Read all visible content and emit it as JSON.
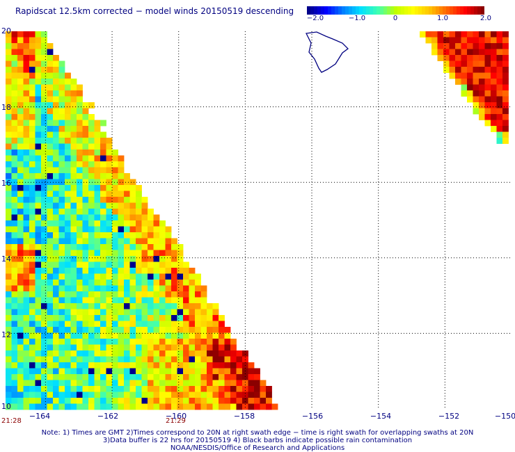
{
  "title": "Rapidscat 12.5km corrected − model winds 20150519 descending",
  "colorbar": {
    "labels": [
      {
        "text": "−2.0",
        "value": -2.0
      },
      {
        "text": "−1.0",
        "value": -1.0
      },
      {
        "text": "0",
        "value": 0
      },
      {
        "text": "1.0",
        "value": 1.0
      },
      {
        "text": "2.0",
        "value": 2.0
      }
    ],
    "range": [
      -2.0,
      2.0
    ],
    "colors": [
      "#00008b",
      "#0000ff",
      "#0080ff",
      "#00e0ff",
      "#40ffb0",
      "#c0ff00",
      "#ffff00",
      "#ffc000",
      "#ff6000",
      "#ff0000",
      "#8b0000"
    ]
  },
  "axes": {
    "lat_labels": [
      "20",
      "18",
      "16",
      "14",
      "12",
      "10"
    ],
    "lon_labels": [
      "−164",
      "−162",
      "−160",
      "−158",
      "−156",
      "−154",
      "−152",
      "−150"
    ]
  },
  "time_labels": [
    "21:28",
    "21:29"
  ],
  "notes": [
    "Note: 1) Times are GMT 2)Times correspond to 20N at right swath edge − time is right swath for overlapping swaths at 20N",
    "3)Data buffer is 22 hrs for 20150519 4) Black barbs indicate possible rain contamination",
    "NOAA/NESDIS/Office of Research and Applications"
  ],
  "chart_data": {
    "type": "heatmap",
    "title": "Rapidscat 12.5km corrected − model winds 20150519 descending",
    "x_axis": {
      "range": [
        -165.2,
        -150
      ],
      "ticks": [
        -164,
        -162,
        -160,
        -158,
        -156,
        -154,
        -152,
        -150
      ]
    },
    "y_axis": {
      "range": [
        10,
        20
      ],
      "ticks": [
        20,
        18,
        16,
        14,
        12,
        10
      ]
    },
    "value_range": [
      -2.0,
      2.0
    ],
    "grid": true,
    "swaths": [
      {
        "description_lon_lat": [
          [
            -165.2,
            20
          ],
          [
            -164.2,
            20
          ],
          [
            -157.2,
            10
          ],
          [
            -165.2,
            10
          ]
        ],
        "dominant_values": [
          -1.0,
          0,
          1.0
        ]
      },
      {
        "description_lon_lat": [
          [
            -152.0,
            20
          ],
          [
            -150.0,
            20
          ],
          [
            -150.0,
            16.3
          ],
          [
            -151.2,
            17.0
          ]
        ],
        "dominant_values": [
          1.0,
          2.0
        ]
      }
    ]
  }
}
